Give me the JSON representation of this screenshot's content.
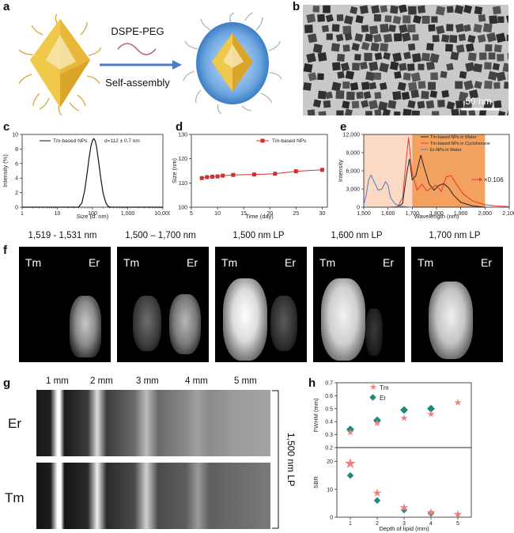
{
  "panel_labels": {
    "a": "a",
    "b": "b",
    "c": "c",
    "d": "d",
    "e": "e",
    "f": "f",
    "g": "g",
    "h": "h"
  },
  "panel_a": {
    "reagent": "DSPE-PEG",
    "process": "Self-assembly"
  },
  "panel_b": {
    "scale_bar": "50 nm"
  },
  "colors": {
    "tm_red": "#d32f2f",
    "er_blue": "#4a7cc7",
    "tm_star": "#f08080",
    "er_diamond": "#1a8a7a",
    "shade_light": "#fbd9c4",
    "shade_dark": "#f2a25e"
  },
  "chart_data": [
    {
      "id": "c",
      "type": "line",
      "legend": "Tm-based NPs",
      "annotation": "d=112 ± 0.7 nm",
      "xlabel": "Size (d. nm)",
      "ylabel": "Intensity (%)",
      "xscale": "log",
      "xlim": [
        1,
        10000
      ],
      "ylim": [
        0,
        10
      ],
      "xticks": [
        "1",
        "10",
        "100",
        "1,000",
        "10,000"
      ],
      "yticks": [
        "0",
        "2",
        "4",
        "6",
        "8",
        "10"
      ],
      "series": [
        {
          "name": "Tm-based NPs",
          "x": [
            40,
            50,
            60,
            70,
            80,
            90,
            100,
            110,
            120,
            130,
            150,
            170,
            200,
            240,
            280,
            320
          ],
          "y": [
            0,
            0.6,
            2.3,
            4.6,
            6.8,
            8.4,
            9.2,
            9.4,
            9.1,
            8.3,
            6.2,
            4.1,
            1.9,
            0.6,
            0.1,
            0
          ]
        }
      ]
    },
    {
      "id": "d",
      "type": "line",
      "xlabel": "Time (day)",
      "ylabel": "Size (nm)",
      "xlim": [
        5,
        31
      ],
      "ylim": [
        100,
        130
      ],
      "xticks": [
        "5",
        "10",
        "15",
        "20",
        "25",
        "30"
      ],
      "yticks": [
        "100",
        "110",
        "120",
        "130"
      ],
      "series": [
        {
          "name": "Tm-based NPs",
          "x": [
            7,
            8,
            9,
            10,
            11,
            13,
            17,
            21,
            25,
            30
          ],
          "y": [
            112,
            112.4,
            112.6,
            112.7,
            113.0,
            113.3,
            113.5,
            113.8,
            114.8,
            115.4
          ]
        }
      ]
    },
    {
      "id": "e",
      "type": "line",
      "xlabel": "Wavelength (nm)",
      "ylabel": "Intensity",
      "xlim": [
        1500,
        2100
      ],
      "ylim": [
        0,
        12000
      ],
      "xticks": [
        "1,500",
        "1,600",
        "1,700",
        "1,800",
        "1,900",
        "2,000",
        "2,100"
      ],
      "yticks": [
        "0",
        "3,000",
        "6,000",
        "9,000",
        "12,000"
      ],
      "annotation": "×0.106",
      "series": [
        {
          "name": "Tm-based NPs in Water",
          "x": [
            1600,
            1640,
            1660,
            1675,
            1688,
            1700,
            1715,
            1735,
            1750,
            1770,
            1790,
            1810,
            1830,
            1850,
            1870,
            1900,
            1950,
            2000
          ],
          "y": [
            0,
            50,
            600,
            5000,
            8000,
            4500,
            5200,
            8600,
            6400,
            3800,
            2800,
            3600,
            3900,
            3200,
            2000,
            800,
            200,
            0
          ]
        },
        {
          "name": "Tm-based NPs in Cyclohexane",
          "x": [
            1600,
            1640,
            1660,
            1672,
            1685,
            1700,
            1720,
            1740,
            1760,
            1780,
            1800,
            1820,
            1840,
            1860,
            1880,
            1910,
            1950,
            2000,
            2050,
            2100
          ],
          "y": [
            0,
            100,
            1500,
            6500,
            11500,
            5500,
            2800,
            3800,
            2700,
            3200,
            3600,
            2600,
            5000,
            5200,
            3900,
            2200,
            1000,
            400,
            200,
            100
          ]
        },
        {
          "name": "Er-NPs in Water",
          "x": [
            1500,
            1510,
            1520,
            1530,
            1545,
            1560,
            1575,
            1590,
            1600,
            1610,
            1630,
            1650,
            1680,
            1700
          ],
          "y": [
            500,
            2000,
            4500,
            5300,
            4000,
            2800,
            3000,
            4200,
            3600,
            1600,
            500,
            150,
            50,
            0
          ]
        }
      ]
    },
    {
      "id": "h_fwhm",
      "type": "scatter",
      "xlabel": "",
      "ylabel": "FWHM (mm)",
      "xlim": [
        0.5,
        5.5
      ],
      "ylim": [
        0.2,
        0.7
      ],
      "xticks": [
        "1",
        "2",
        "3",
        "4",
        "5"
      ],
      "yticks": [
        "0.2",
        "0.3",
        "0.4",
        "0.5",
        "0.6",
        "0.7"
      ],
      "series": [
        {
          "name": "Tm",
          "x": [
            1,
            2,
            3,
            4,
            5
          ],
          "y": [
            0.32,
            0.39,
            0.43,
            0.46,
            0.55
          ]
        },
        {
          "name": "Er",
          "x": [
            1,
            2,
            3,
            4
          ],
          "y": [
            0.34,
            0.41,
            0.49,
            0.5
          ]
        }
      ]
    },
    {
      "id": "h_sbr",
      "type": "scatter",
      "xlabel": "Depth of lipid (mm)",
      "ylabel": "SBR",
      "xlim": [
        0.5,
        5.5
      ],
      "ylim": [
        0,
        25
      ],
      "xticks": [
        "1",
        "2",
        "3",
        "4",
        "5"
      ],
      "yticks": [
        "0",
        "10",
        "20"
      ],
      "series": [
        {
          "name": "Tm",
          "x": [
            1,
            2,
            3,
            4,
            5
          ],
          "y": [
            19.5,
            8.8,
            3.5,
            1.8,
            1.2
          ]
        },
        {
          "name": "Er",
          "x": [
            1,
            2,
            3,
            4
          ],
          "y": [
            15,
            6,
            2.6,
            1.4
          ]
        }
      ]
    }
  ],
  "panel_f": {
    "headers": [
      "1,519 - 1,531 nm",
      "1,500 – 1,700 nm",
      "1,500 nm LP",
      "1,600 nm LP",
      "1,700 nm LP"
    ],
    "tag_tm": "Tm",
    "tag_er": "Er"
  },
  "panel_g": {
    "columns": [
      "1 mm",
      "2 mm",
      "3 mm",
      "4 mm",
      "5 mm"
    ],
    "row_er": "Er",
    "row_tm": "Tm",
    "side_label": "1,500 nm LP"
  }
}
